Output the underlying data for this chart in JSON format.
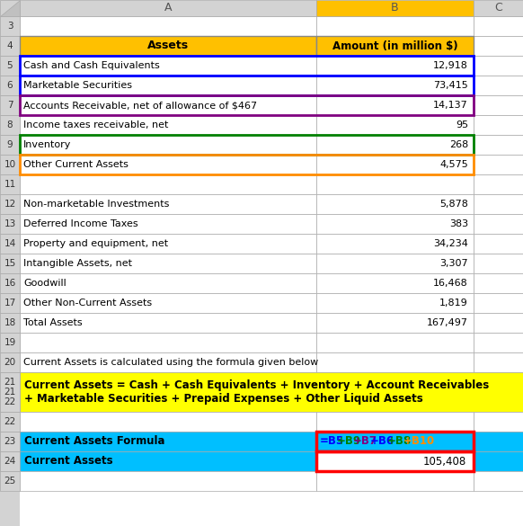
{
  "col_header_bg": "#FFC000",
  "col_header_text": "black",
  "header_row4_A": "Assets",
  "header_row4_B": "Amount (in million $)",
  "data_rows": [
    {
      "row": 5,
      "A": "Cash and Cash Equivalents",
      "B": "12,918",
      "border_color": "#0000FF"
    },
    {
      "row": 6,
      "A": "Marketable Securities",
      "B": "73,415",
      "border_color": "#0000FF"
    },
    {
      "row": 7,
      "A": "Accounts Receivable, net of allowance of $467",
      "B": "14,137",
      "border_color": "#800080"
    },
    {
      "row": 8,
      "A": "Income taxes receivable, net",
      "B": "95",
      "border_color": null
    },
    {
      "row": 9,
      "A": "Inventory",
      "B": "268",
      "border_color": "#008000"
    },
    {
      "row": 10,
      "A": "Other Current Assets",
      "B": "4,575",
      "border_color": "#FF8C00"
    },
    {
      "row": 11,
      "A": "",
      "B": "",
      "border_color": null
    },
    {
      "row": 12,
      "A": "Non-marketable Investments",
      "B": "5,878",
      "border_color": null
    },
    {
      "row": 13,
      "A": "Deferred Income Taxes",
      "B": "383",
      "border_color": null
    },
    {
      "row": 14,
      "A": "Property and equipment, net",
      "B": "34,234",
      "border_color": null
    },
    {
      "row": 15,
      "A": "Intangible Assets, net",
      "B": "3,307",
      "border_color": null
    },
    {
      "row": 16,
      "A": "Goodwill",
      "B": "16,468",
      "border_color": null
    },
    {
      "row": 17,
      "A": "Other Non-Current Assets",
      "B": "1,819",
      "border_color": null
    },
    {
      "row": 18,
      "A": "Total Assets",
      "B": "167,497",
      "border_color": null
    }
  ],
  "row20_text": "Current Assets is calculated using the formula given below",
  "row21_text_line1": "Current Assets = Cash + Cash Equivalents + Inventory + Account Receivables",
  "row21_text_line2": "+ Marketable Securities + Prepaid Expenses + Other Liquid Assets",
  "row21_bg": "#FFFF00",
  "row23_A": "Current Assets Formula",
  "row23_B_parts": [
    {
      "text": "=B5",
      "color": "#0000FF"
    },
    {
      "text": "+B9",
      "color": "#008000"
    },
    {
      "text": "+B7",
      "color": "#800080"
    },
    {
      "text": "+B6",
      "color": "#0000FF"
    },
    {
      "text": "+B8",
      "color": "#008000"
    },
    {
      "text": "+B10",
      "color": "#FF8C00"
    }
  ],
  "row23_bg": "#00BFFF",
  "row24_A": "Current Assets",
  "row24_B": "105,408",
  "row24_bg": "#00BFFF",
  "col_header_B_bg": "#FFC000",
  "grid_color": "#AAAAAA",
  "row_idx_bg": "#D3D3D3"
}
